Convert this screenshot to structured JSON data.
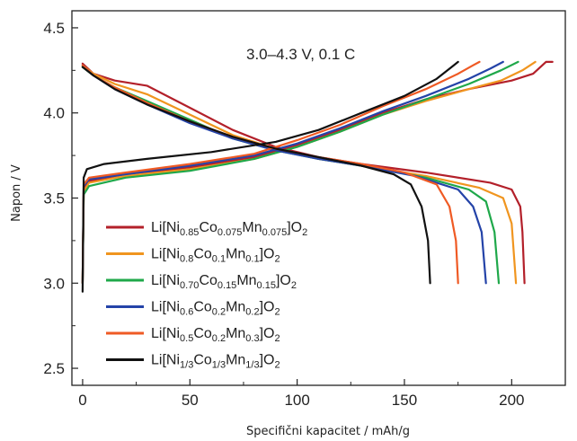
{
  "chart_data": {
    "type": "line",
    "xlabel": "Specifični kapacitet / mAh/g",
    "ylabel": "Napon / V",
    "annotation": "3.0–4.3 V, 0.1 C",
    "xlim": [
      -5,
      225
    ],
    "ylim": [
      2.4,
      4.6
    ],
    "xticks": [
      0,
      50,
      100,
      150,
      200
    ],
    "yticks": [
      2.5,
      3.0,
      3.5,
      4.0,
      4.5
    ],
    "xtick_labels": [
      "0",
      "50",
      "100",
      "150",
      "200"
    ],
    "ytick_labels": [
      "2.5",
      "3.0",
      "3.5",
      "4.0",
      "4.5"
    ],
    "grid": false,
    "legend_position": "lower-left",
    "series": [
      {
        "name": "Li[Ni0.85Co0.075Mn0.075]O2",
        "legend_parts": [
          [
            "Li[Ni",
            ""
          ],
          [
            "0.85",
            "sub"
          ],
          [
            "Co",
            ""
          ],
          [
            "0.075",
            "sub"
          ],
          [
            "Mn",
            ""
          ],
          [
            "0.075",
            "sub"
          ],
          [
            "]O",
            ""
          ],
          [
            "2",
            "sub"
          ]
        ],
        "color": "#b3202a",
        "charge": [
          [
            0,
            3.0
          ],
          [
            0.5,
            3.55
          ],
          [
            3,
            3.6
          ],
          [
            20,
            3.64
          ],
          [
            50,
            3.68
          ],
          [
            80,
            3.74
          ],
          [
            100,
            3.81
          ],
          [
            120,
            3.9
          ],
          [
            140,
            4.0
          ],
          [
            160,
            4.08
          ],
          [
            180,
            4.14
          ],
          [
            200,
            4.19
          ],
          [
            210,
            4.23
          ],
          [
            216,
            4.3
          ],
          [
            219,
            4.3
          ]
        ],
        "discharge": [
          [
            0,
            4.29
          ],
          [
            5,
            4.23
          ],
          [
            15,
            4.19
          ],
          [
            30,
            4.16
          ],
          [
            50,
            4.03
          ],
          [
            70,
            3.9
          ],
          [
            90,
            3.8
          ],
          [
            110,
            3.74
          ],
          [
            130,
            3.7
          ],
          [
            160,
            3.65
          ],
          [
            190,
            3.59
          ],
          [
            200,
            3.55
          ],
          [
            204,
            3.45
          ],
          [
            205,
            3.3
          ],
          [
            206,
            3.0
          ]
        ]
      },
      {
        "name": "Li[Ni0.8Co0.1Mn0.1]O2",
        "legend_parts": [
          [
            "Li[Ni",
            ""
          ],
          [
            "0.8",
            "sub"
          ],
          [
            "Co",
            ""
          ],
          [
            "0.1",
            "sub"
          ],
          [
            "Mn",
            ""
          ],
          [
            "0.1",
            "sub"
          ],
          [
            "]O",
            ""
          ],
          [
            "2",
            "sub"
          ]
        ],
        "color": "#f0951f",
        "charge": [
          [
            0,
            3.0
          ],
          [
            0.5,
            3.54
          ],
          [
            3,
            3.59
          ],
          [
            20,
            3.63
          ],
          [
            50,
            3.67
          ],
          [
            80,
            3.73
          ],
          [
            100,
            3.8
          ],
          [
            120,
            3.89
          ],
          [
            140,
            3.99
          ],
          [
            160,
            4.07
          ],
          [
            180,
            4.14
          ],
          [
            195,
            4.19
          ],
          [
            205,
            4.25
          ],
          [
            211,
            4.3
          ]
        ],
        "discharge": [
          [
            0,
            4.28
          ],
          [
            5,
            4.23
          ],
          [
            15,
            4.17
          ],
          [
            30,
            4.11
          ],
          [
            50,
            3.99
          ],
          [
            70,
            3.87
          ],
          [
            90,
            3.79
          ],
          [
            110,
            3.73
          ],
          [
            130,
            3.69
          ],
          [
            160,
            3.63
          ],
          [
            185,
            3.56
          ],
          [
            196,
            3.5
          ],
          [
            200,
            3.35
          ],
          [
            202,
            3.0
          ]
        ]
      },
      {
        "name": "Li[Ni0.70Co0.15Mn0.15]O2",
        "legend_parts": [
          [
            "Li[Ni",
            ""
          ],
          [
            "0.70",
            "sub"
          ],
          [
            "Co",
            ""
          ],
          [
            "0.15",
            "sub"
          ],
          [
            "Mn",
            ""
          ],
          [
            "0.15",
            "sub"
          ],
          [
            "]O",
            ""
          ],
          [
            "2",
            "sub"
          ]
        ],
        "color": "#1fa84a",
        "charge": [
          [
            0,
            3.0
          ],
          [
            0.5,
            3.52
          ],
          [
            3,
            3.57
          ],
          [
            20,
            3.62
          ],
          [
            50,
            3.66
          ],
          [
            80,
            3.73
          ],
          [
            100,
            3.8
          ],
          [
            120,
            3.89
          ],
          [
            140,
            3.99
          ],
          [
            160,
            4.08
          ],
          [
            180,
            4.17
          ],
          [
            195,
            4.25
          ],
          [
            203,
            4.3
          ]
        ],
        "discharge": [
          [
            0,
            4.27
          ],
          [
            5,
            4.22
          ],
          [
            15,
            4.15
          ],
          [
            30,
            4.07
          ],
          [
            50,
            3.96
          ],
          [
            70,
            3.85
          ],
          [
            90,
            3.78
          ],
          [
            110,
            3.73
          ],
          [
            130,
            3.69
          ],
          [
            160,
            3.62
          ],
          [
            180,
            3.55
          ],
          [
            188,
            3.48
          ],
          [
            192,
            3.3
          ],
          [
            194,
            3.0
          ]
        ]
      },
      {
        "name": "Li[Ni0.6Co0.2Mn0.2]O2",
        "legend_parts": [
          [
            "Li[Ni",
            ""
          ],
          [
            "0.6",
            "sub"
          ],
          [
            "Co",
            ""
          ],
          [
            "0.2",
            "sub"
          ],
          [
            "Mn",
            ""
          ],
          [
            "0.2",
            "sub"
          ],
          [
            "]O",
            ""
          ],
          [
            "2",
            "sub"
          ]
        ],
        "color": "#2443a8",
        "charge": [
          [
            0,
            3.0
          ],
          [
            0.5,
            3.57
          ],
          [
            3,
            3.61
          ],
          [
            20,
            3.64
          ],
          [
            50,
            3.69
          ],
          [
            80,
            3.75
          ],
          [
            100,
            3.82
          ],
          [
            120,
            3.91
          ],
          [
            140,
            4.01
          ],
          [
            160,
            4.1
          ],
          [
            180,
            4.2
          ],
          [
            190,
            4.26
          ],
          [
            196,
            4.3
          ]
        ],
        "discharge": [
          [
            0,
            4.28
          ],
          [
            5,
            4.22
          ],
          [
            15,
            4.14
          ],
          [
            30,
            4.05
          ],
          [
            50,
            3.94
          ],
          [
            70,
            3.85
          ],
          [
            90,
            3.78
          ],
          [
            110,
            3.73
          ],
          [
            130,
            3.69
          ],
          [
            155,
            3.63
          ],
          [
            175,
            3.55
          ],
          [
            182,
            3.45
          ],
          [
            186,
            3.3
          ],
          [
            188,
            3.0
          ]
        ]
      },
      {
        "name": "Li[Ni0.5Co0.2Mn0.3]O2",
        "legend_parts": [
          [
            "Li[Ni",
            ""
          ],
          [
            "0.5",
            "sub"
          ],
          [
            "Co",
            ""
          ],
          [
            "0.2",
            "sub"
          ],
          [
            "Mn",
            ""
          ],
          [
            "0.3",
            "sub"
          ],
          [
            "]O",
            ""
          ],
          [
            "2",
            "sub"
          ]
        ],
        "color": "#ef5a24",
        "charge": [
          [
            0,
            3.0
          ],
          [
            0.5,
            3.58
          ],
          [
            3,
            3.62
          ],
          [
            20,
            3.65
          ],
          [
            50,
            3.7
          ],
          [
            80,
            3.76
          ],
          [
            100,
            3.84
          ],
          [
            120,
            3.93
          ],
          [
            140,
            4.04
          ],
          [
            160,
            4.14
          ],
          [
            175,
            4.23
          ],
          [
            182,
            4.28
          ],
          [
            185,
            4.3
          ]
        ],
        "discharge": [
          [
            0,
            4.28
          ],
          [
            5,
            4.22
          ],
          [
            15,
            4.15
          ],
          [
            30,
            4.06
          ],
          [
            50,
            3.95
          ],
          [
            70,
            3.86
          ],
          [
            90,
            3.79
          ],
          [
            110,
            3.74
          ],
          [
            130,
            3.7
          ],
          [
            150,
            3.65
          ],
          [
            165,
            3.58
          ],
          [
            171,
            3.45
          ],
          [
            174,
            3.25
          ],
          [
            175,
            3.0
          ]
        ]
      },
      {
        "name": "Li[Ni1/3Co1/3Mn1/3]O2",
        "legend_parts": [
          [
            "Li[Ni",
            ""
          ],
          [
            "1/3",
            "sub"
          ],
          [
            "Co",
            ""
          ],
          [
            "1/3",
            "sub"
          ],
          [
            "Mn",
            ""
          ],
          [
            "1/3",
            "sub"
          ],
          [
            "]O",
            ""
          ],
          [
            "2",
            "sub"
          ]
        ],
        "color": "#111111",
        "charge": [
          [
            0,
            2.95
          ],
          [
            0.5,
            3.62
          ],
          [
            2,
            3.67
          ],
          [
            10,
            3.7
          ],
          [
            30,
            3.73
          ],
          [
            60,
            3.77
          ],
          [
            90,
            3.83
          ],
          [
            110,
            3.9
          ],
          [
            130,
            4.0
          ],
          [
            150,
            4.1
          ],
          [
            165,
            4.2
          ],
          [
            172,
            4.27
          ],
          [
            175,
            4.3
          ]
        ],
        "discharge": [
          [
            0,
            4.27
          ],
          [
            5,
            4.22
          ],
          [
            15,
            4.14
          ],
          [
            30,
            4.05
          ],
          [
            50,
            3.95
          ],
          [
            70,
            3.86
          ],
          [
            90,
            3.79
          ],
          [
            110,
            3.74
          ],
          [
            130,
            3.69
          ],
          [
            145,
            3.64
          ],
          [
            153,
            3.58
          ],
          [
            158,
            3.45
          ],
          [
            161,
            3.25
          ],
          [
            162,
            3.0
          ]
        ]
      }
    ]
  }
}
